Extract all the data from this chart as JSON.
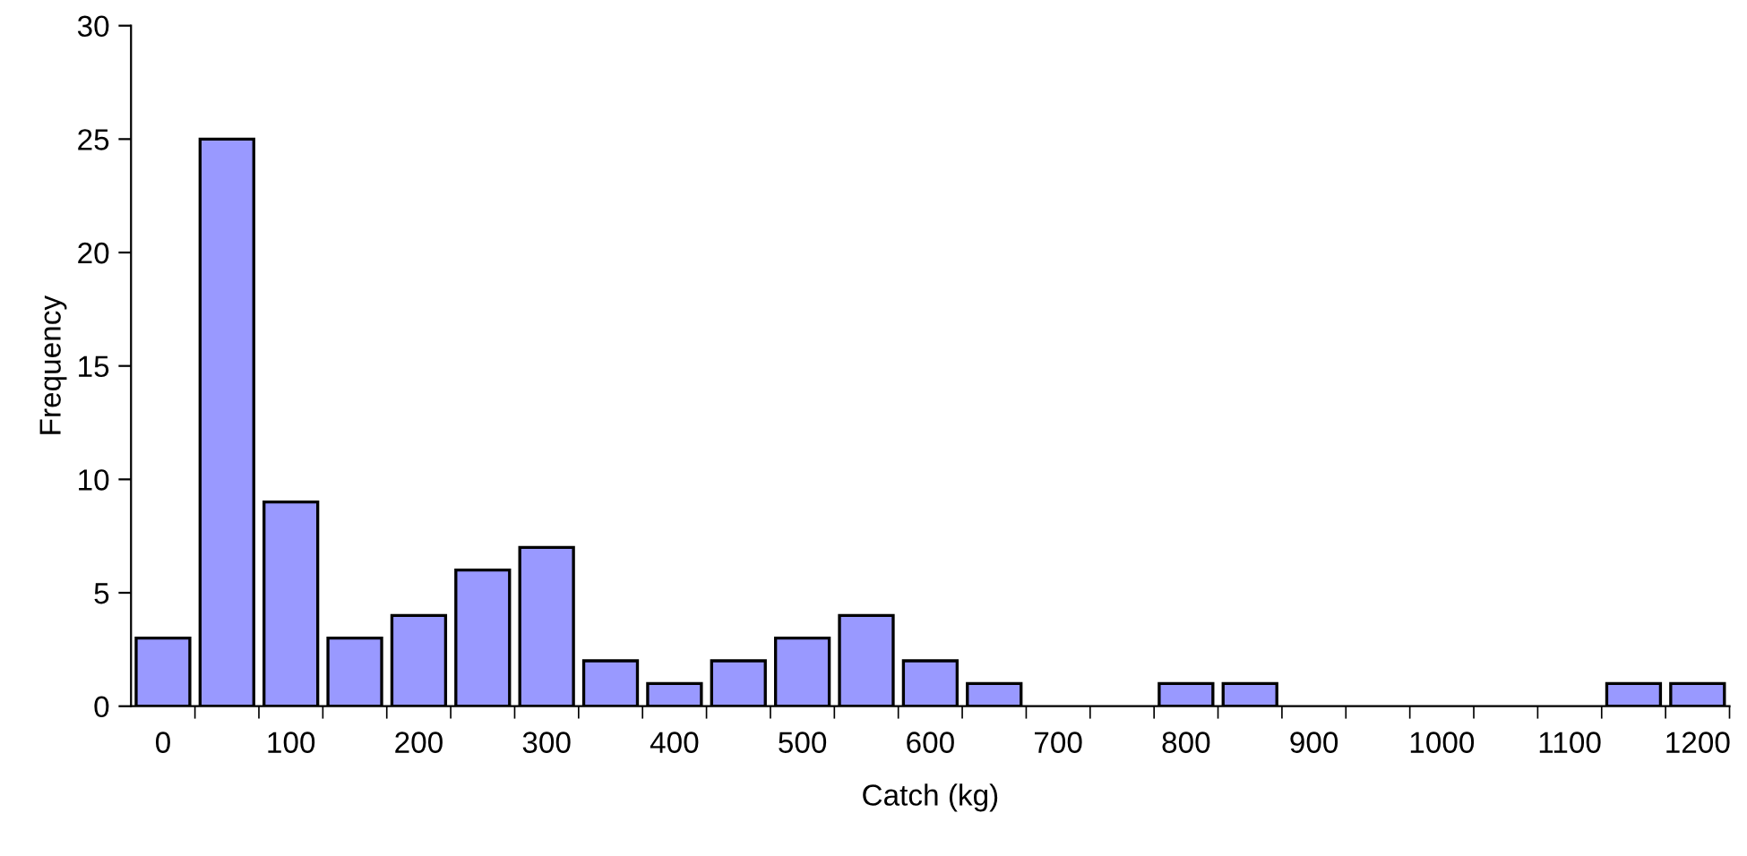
{
  "chart_data": {
    "type": "bar",
    "xlabel": "Catch (kg)",
    "ylabel": "Frequency",
    "categories": [
      "0",
      null,
      "100",
      null,
      "200",
      null,
      "300",
      null,
      "400",
      null,
      "500",
      null,
      "600",
      null,
      "700",
      null,
      "800",
      null,
      "900",
      null,
      "1000",
      null,
      "1100",
      null,
      "1200"
    ],
    "values": [
      3,
      25,
      9,
      3,
      4,
      6,
      7,
      2,
      1,
      2,
      3,
      4,
      2,
      1,
      0,
      0,
      1,
      1,
      0,
      0,
      0,
      0,
      0,
      1,
      1
    ],
    "color": "#9999ff",
    "ylim": [
      0,
      30
    ],
    "yticks": [
      0,
      5,
      10,
      15,
      20,
      25,
      30
    ],
    "grid": false,
    "legend": false
  }
}
